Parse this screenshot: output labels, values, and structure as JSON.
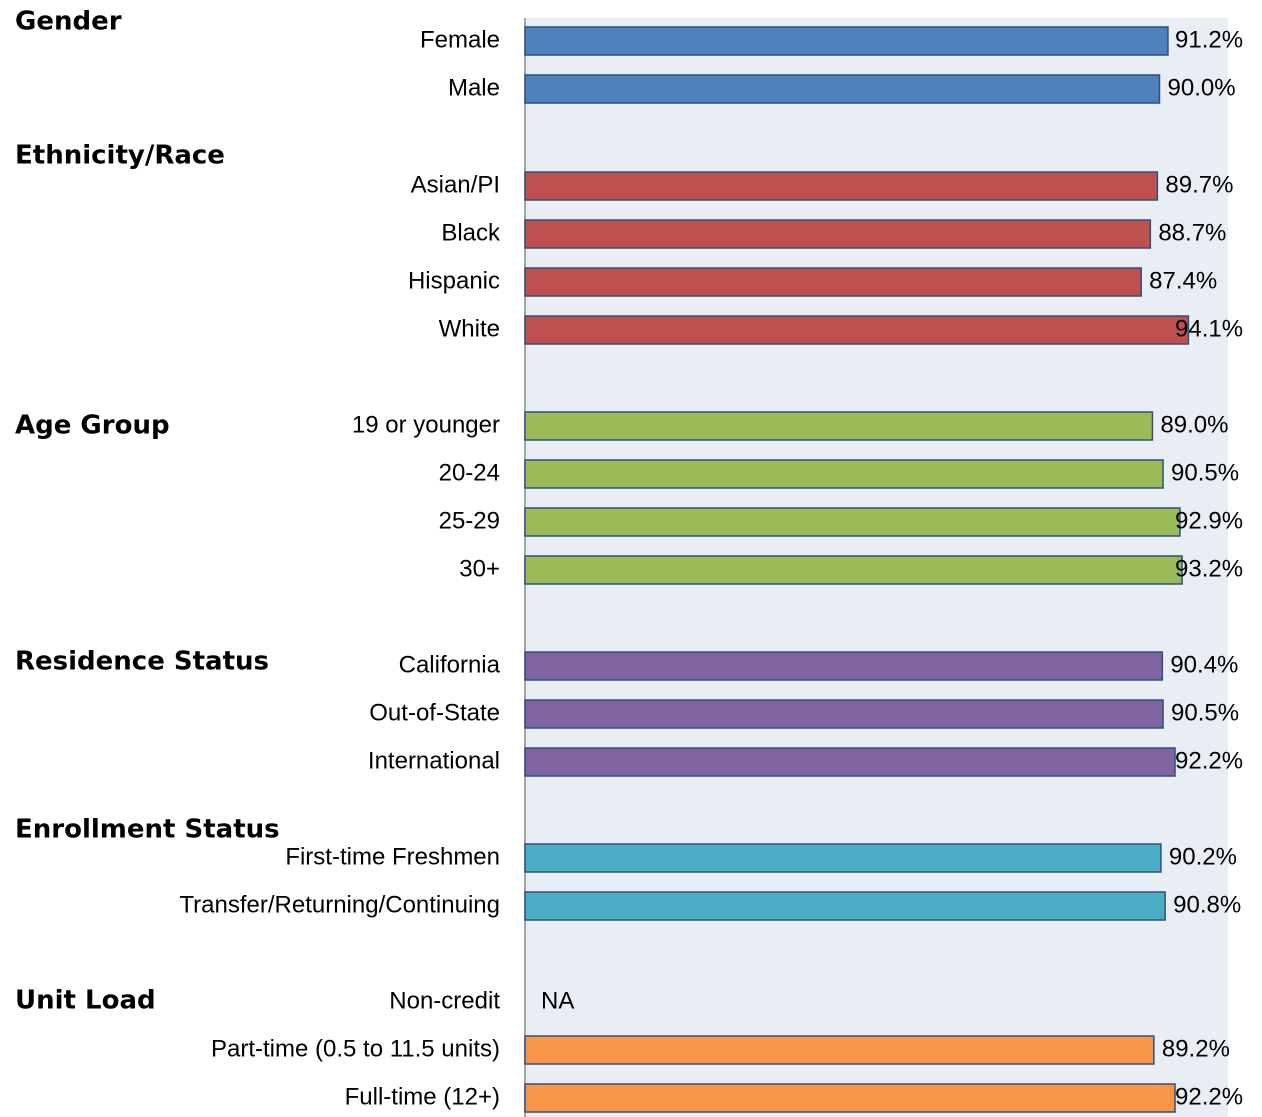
{
  "chart_data": {
    "type": "bar",
    "orientation": "horizontal",
    "title": "",
    "xlabel": "",
    "ylabel": "",
    "xlim": [
      0,
      100
    ],
    "grid": false,
    "legend": "none",
    "plot_background": "#E9EDF4",
    "groups": [
      {
        "name": "Gender",
        "color": "#4F81BD",
        "categories": [
          "Female",
          "Male"
        ],
        "values": [
          91.2,
          90.0
        ],
        "labels": [
          "91.2%",
          "90.0%"
        ]
      },
      {
        "name": "Ethnicity/Race",
        "color": "#C0504D",
        "categories": [
          "Asian/PI",
          "Black",
          "Hispanic",
          "White"
        ],
        "values": [
          89.7,
          88.7,
          87.4,
          94.1
        ],
        "labels": [
          "89.7%",
          "88.7%",
          "87.4%",
          "94.1%"
        ]
      },
      {
        "name": "Age Group",
        "color": "#9BBB59",
        "categories": [
          "19 or younger",
          "20-24",
          "25-29",
          "30+"
        ],
        "values": [
          89.0,
          90.5,
          92.9,
          93.2
        ],
        "labels": [
          "89.0%",
          "90.5%",
          "92.9%",
          "93.2%"
        ]
      },
      {
        "name": "Residence Status",
        "color": "#8064A2",
        "categories": [
          "California",
          "Out-of-State",
          "International"
        ],
        "values": [
          90.4,
          90.5,
          92.2
        ],
        "labels": [
          "90.4%",
          "90.5%",
          "92.2%"
        ]
      },
      {
        "name": "Enrollment Status",
        "color": "#4BACC6",
        "categories": [
          "First-time Freshmen",
          "Transfer/Returning/Continuing"
        ],
        "values": [
          90.2,
          90.8
        ],
        "labels": [
          "90.2%",
          "90.8%"
        ]
      },
      {
        "name": "Unit Load",
        "color": "#F79646",
        "categories": [
          "Non-credit",
          "Part-time (0.5 to 11.5 units)",
          "Full-time (12+)"
        ],
        "values": [
          null,
          89.2,
          92.2
        ],
        "labels": [
          "NA",
          "89.2%",
          "92.2%"
        ]
      }
    ]
  }
}
